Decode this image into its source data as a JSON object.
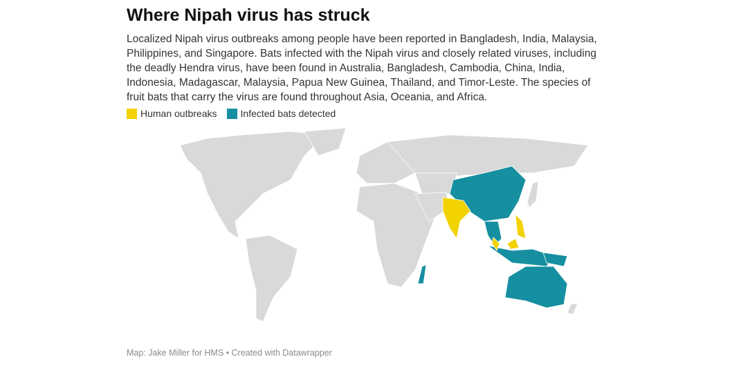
{
  "header": {
    "title": "Where Nipah virus has struck",
    "description": "Localized Nipah virus outbreaks among people have been reported in Bangladesh, India, Malaysia, Philippines, and Singapore. Bats infected with the Nipah virus and closely related viruses, including the deadly Hendra virus, have been found in Australia, Bangladesh, Cambodia, China, India, Indonesia, Madagascar, Malaysia, Papua New Guinea, Thailand, and Timor-Leste. The species of fruit bats that carry the virus are found throughout Asia, Oceania, and Africa."
  },
  "legend": [
    {
      "label": "Human outbreaks",
      "color": "#f2d200"
    },
    {
      "label": "Infected bats detected",
      "color": "#168fa0"
    }
  ],
  "footer": "Map: Jake Miller for HMS • Created with Datawrapper"
}
